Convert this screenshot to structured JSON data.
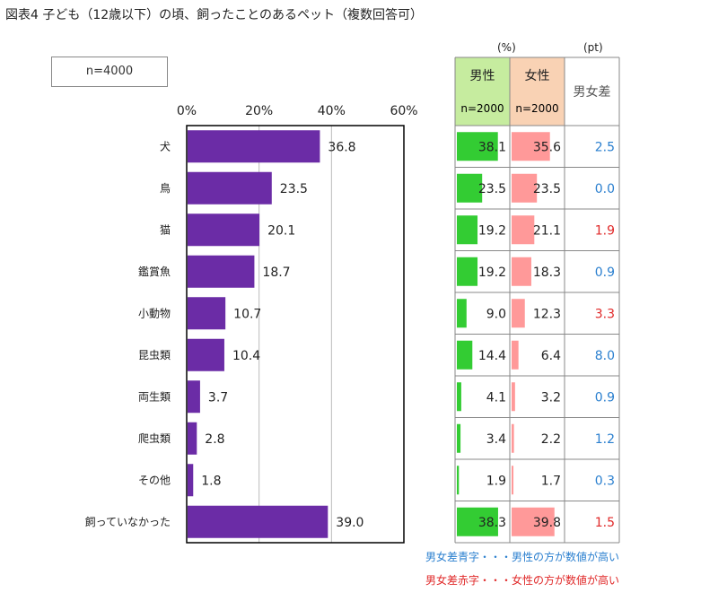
{
  "title": "図表4 子ども（12歳以下）の頃、飼ったことのあるペット（複数回答可）",
  "sample_label": "n=4000",
  "table_units": {
    "percent": "(%)",
    "point": "(pt)"
  },
  "table_headers": {
    "male": "男性",
    "male_n": "n=2000",
    "female": "女性",
    "female_n": "n=2000",
    "diff": "男女差"
  },
  "colors": {
    "bar": "#6b2ca6",
    "male_bar": "#33cc33",
    "female_bar": "#ff9999",
    "male_header_bg": "#c6ec9f",
    "female_header_bg": "#f9d2b4",
    "diff_blue": "#2a7fcf",
    "diff_red": "#e02828",
    "gridline": "#bbbbbb"
  },
  "legend": {
    "blue": "男女差青字・・・男性の方が数値が高い",
    "red": "男女差赤字・・・女性の方が数値が高い"
  },
  "chart_data": {
    "type": "bar",
    "orientation": "horizontal",
    "title": "図表4 子ども（12歳以下）の頃、飼ったことのあるペット（複数回答可）",
    "xlim": [
      0,
      60
    ],
    "ticks": [
      0,
      20,
      40,
      60
    ],
    "tick_suffix": "%",
    "categories": [
      "犬",
      "鳥",
      "猫",
      "鑑賞魚",
      "小動物",
      "昆虫類",
      "両生類",
      "爬虫類",
      "その他",
      "飼っていなかった"
    ],
    "values": [
      36.8,
      23.5,
      20.1,
      18.7,
      10.7,
      10.4,
      3.7,
      2.8,
      1.8,
      39.0
    ],
    "table": {
      "male": [
        38.1,
        23.5,
        19.2,
        19.2,
        9.0,
        14.4,
        4.1,
        3.4,
        1.9,
        38.3
      ],
      "female": [
        35.6,
        23.5,
        21.1,
        18.3,
        12.3,
        6.4,
        3.2,
        2.2,
        1.7,
        39.8
      ],
      "diff": [
        2.5,
        0.0,
        1.9,
        0.9,
        3.3,
        8.0,
        0.9,
        1.2,
        0.3,
        1.5
      ],
      "diff_higher": [
        "male",
        "male",
        "female",
        "male",
        "female",
        "male",
        "male",
        "male",
        "male",
        "female"
      ]
    }
  }
}
